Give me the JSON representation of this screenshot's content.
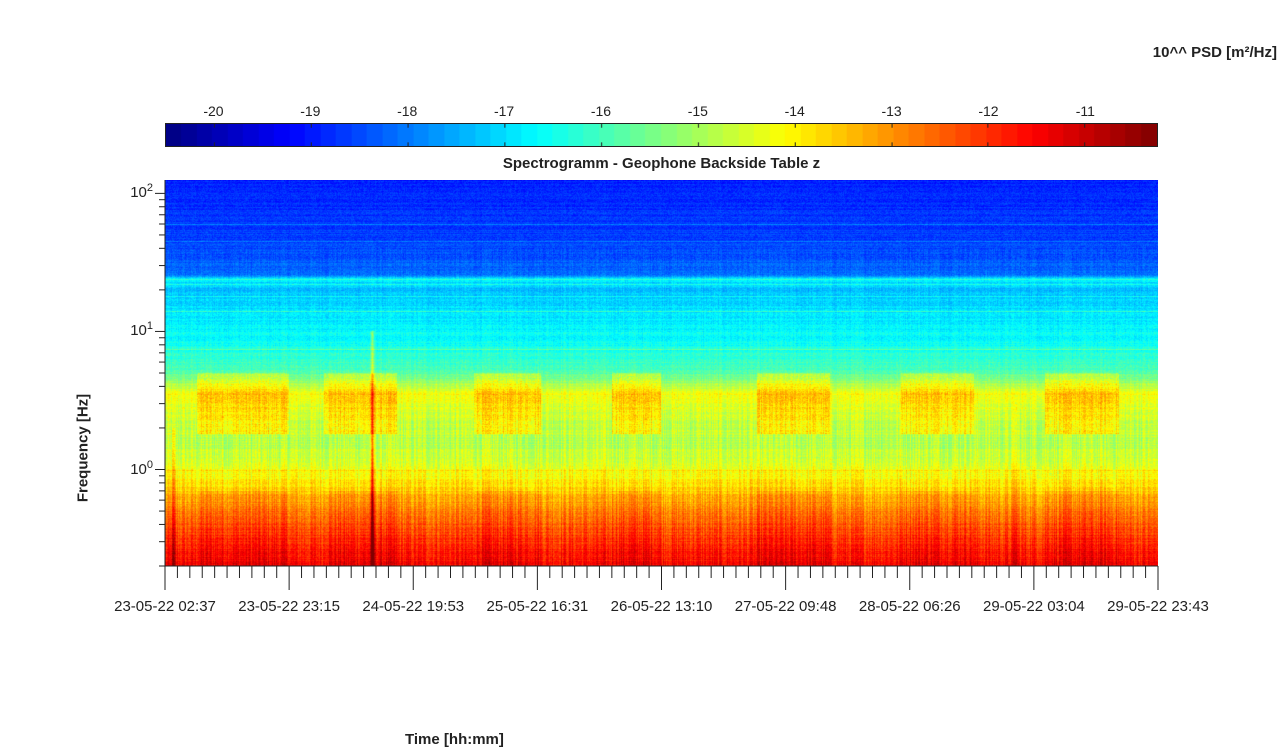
{
  "colorbar": {
    "label": "10^^ PSD [m²/Hz]",
    "ticks": [
      -20,
      -19,
      -18,
      -17,
      -16,
      -15,
      -14,
      -13,
      -12,
      -11
    ],
    "range": [
      -20.5,
      -10.25
    ],
    "colormap": "jet"
  },
  "chart_data": {
    "type": "heatmap",
    "title": "Spectrogramm - Geophone Backside Table z",
    "xlabel": "Time [hh:mm]",
    "ylabel": "Frequency [Hz]",
    "xticks": [
      "23-05-22 02:37",
      "23-05-22 23:15",
      "24-05-22 19:53",
      "25-05-22 16:31",
      "26-05-22 13:10",
      "27-05-22 09:48",
      "28-05-22 06:26",
      "29-05-22 03:04",
      "29-05-22 23:43"
    ],
    "yscale": "log",
    "ylim": [
      0.2,
      125
    ],
    "yticks": [
      {
        "base": "10",
        "exp": "0",
        "value": 1
      },
      {
        "base": "10",
        "exp": "1",
        "value": 10
      },
      {
        "base": "10",
        "exp": "2",
        "value": 100
      }
    ],
    "psd_log10_profile": [
      {
        "freq": 0.2,
        "value": -11.5
      },
      {
        "freq": 0.3,
        "value": -12.0
      },
      {
        "freq": 0.5,
        "value": -12.8
      },
      {
        "freq": 0.7,
        "value": -13.6
      },
      {
        "freq": 1.0,
        "value": -14.3
      },
      {
        "freq": 1.5,
        "value": -14.8
      },
      {
        "freq": 2.5,
        "value": -14.6
      },
      {
        "freq": 3.5,
        "value": -14.2
      },
      {
        "freq": 5.0,
        "value": -15.8
      },
      {
        "freq": 8.0,
        "value": -16.5
      },
      {
        "freq": 12.0,
        "value": -16.8
      },
      {
        "freq": 20.0,
        "value": -17.3
      },
      {
        "freq": 24.0,
        "value": -16.8
      },
      {
        "freq": 26.0,
        "value": -18.2
      },
      {
        "freq": 50.0,
        "value": -18.6
      },
      {
        "freq": 125.0,
        "value": -18.9
      }
    ],
    "horizontal_lines_hz": [
      1.0,
      7.5,
      14.0,
      18.0,
      22.0,
      24.0,
      45.0,
      60.0
    ],
    "vertical_events": [
      {
        "time": "24-05-22 13:00",
        "freq_top": 10.0,
        "strength": 2.5
      },
      {
        "time": "23-05-22 04:00",
        "freq_top": 2.0,
        "strength": 1.2
      },
      {
        "time": "29-05-22 00:00",
        "freq_top": 3.0,
        "strength": 0.8
      }
    ],
    "activity_windows": [
      {
        "start": "23-05-22 08:00",
        "end": "23-05-22 23:00"
      },
      {
        "start": "24-05-22 05:00",
        "end": "24-05-22 17:00"
      },
      {
        "start": "25-05-22 06:00",
        "end": "25-05-22 17:00"
      },
      {
        "start": "26-05-22 05:00",
        "end": "26-05-22 13:00"
      },
      {
        "start": "27-05-22 05:00",
        "end": "27-05-22 17:00"
      },
      {
        "start": "28-05-22 05:00",
        "end": "28-05-22 17:00"
      },
      {
        "start": "29-05-22 05:00",
        "end": "29-05-22 17:00"
      }
    ]
  }
}
